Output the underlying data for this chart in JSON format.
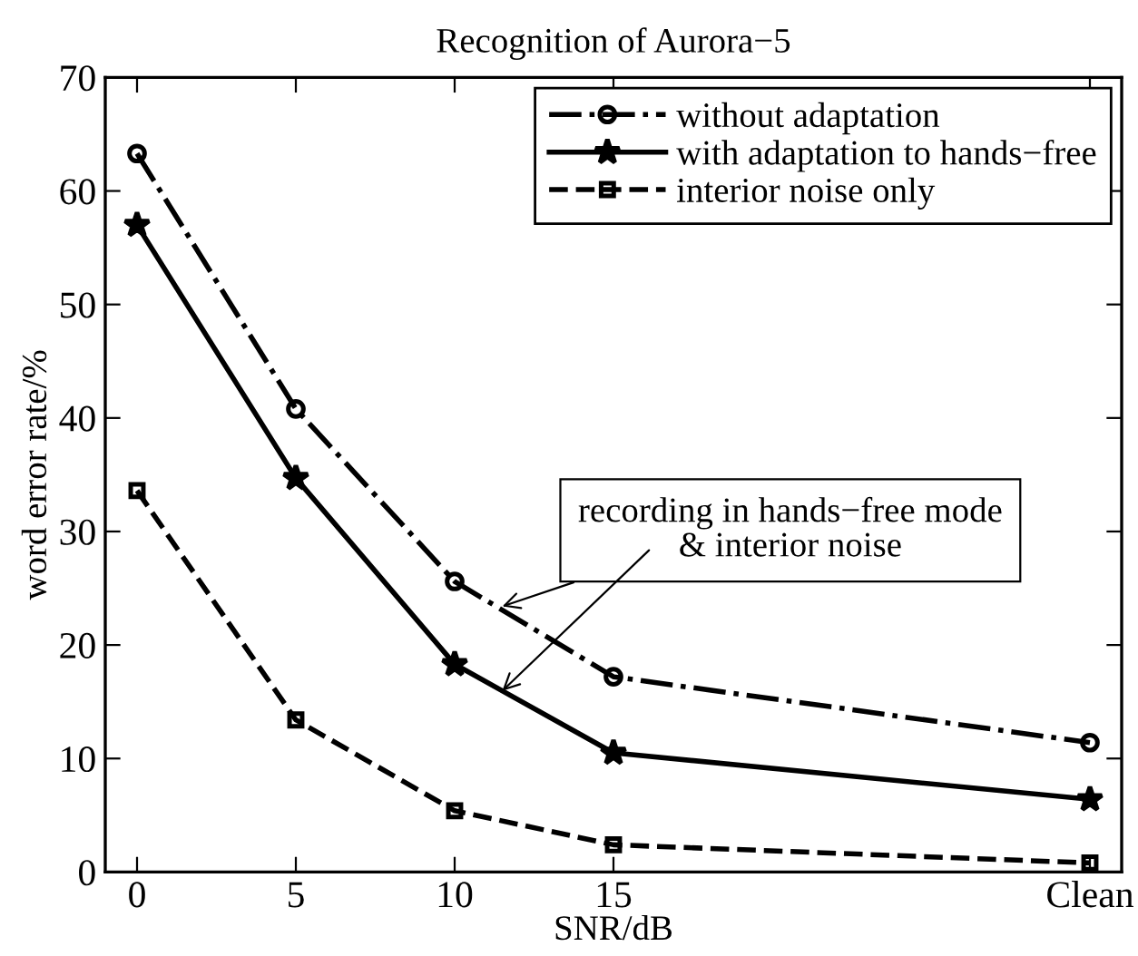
{
  "chart_data": {
    "type": "line",
    "title": "Recognition of Aurora−5",
    "xlabel": "SNR/dB",
    "ylabel": "word error rate/%",
    "x": [
      0,
      5,
      10,
      15,
      30
    ],
    "series": [
      {
        "name": "without adaptation",
        "color": "#000000",
        "values": [
          63.3,
          40.8,
          25.6,
          17.2,
          11.4
        ],
        "marker": "circle",
        "line_style": "dashdot"
      },
      {
        "name": "with adaptation to hands−free",
        "color": "#000000",
        "values": [
          57,
          34.7,
          18.3,
          10.5,
          6.4
        ],
        "marker": "star",
        "line_style": "solid"
      },
      {
        "name": "interior noise only",
        "color": "#000000",
        "values": [
          33.6,
          13.4,
          5.4,
          2.4,
          0.8
        ],
        "marker": "square",
        "line_style": "dashed"
      }
    ],
    "xlim": [
      -1,
      31
    ],
    "xticks": [
      0,
      5,
      10,
      15,
      {
        "value": 30,
        "label": "Clean"
      }
    ],
    "ylim": [
      0,
      70
    ],
    "yticks": [
      0,
      10,
      20,
      30,
      40,
      50,
      60,
      70
    ],
    "grid": false,
    "legend": "top right",
    "annotations": [
      {
        "text": "recording in hands−free mode\n& interior noise",
        "x": 11.5,
        "y": 23.4
      }
    ]
  }
}
